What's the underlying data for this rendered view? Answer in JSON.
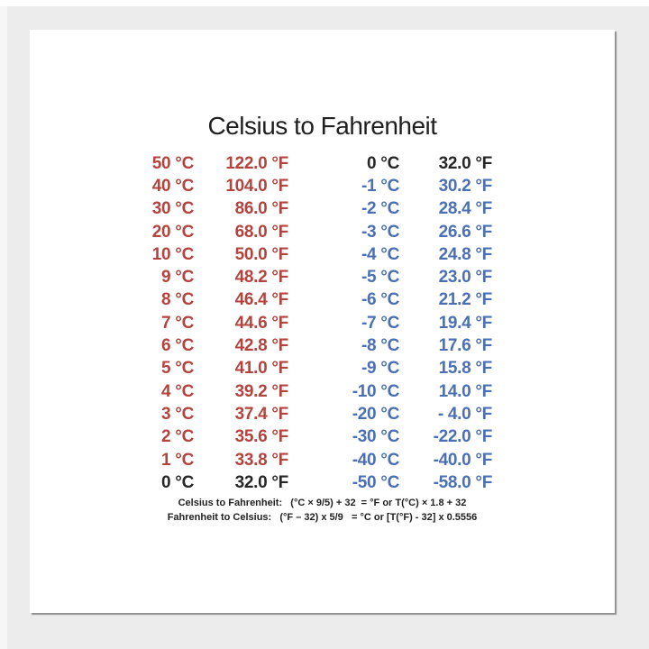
{
  "poster": {
    "title": "Celsius to Fahrenheit",
    "footer": {
      "line1": "Celsius to Fahrenheit:   (°C × 9/5) + 32  = °F or T(°C) × 1.8 + 32",
      "line2": "Fahrenheit to Celsius:   (°F – 32) x 5/9   = °C or [T(°F) - 32] x 0.5556"
    }
  },
  "colors": {
    "red": "#b4433e",
    "blue": "#4a6fb4",
    "black": "#262626",
    "background": "#ececec",
    "card": "#ffffff"
  },
  "chart_data": {
    "type": "table",
    "title": "Celsius to Fahrenheit",
    "layout": "two side-by-side Celsius→Fahrenheit pair columns, values right-aligned, positive rows red, zero rows black, negative rows blue",
    "left_rows": [
      {
        "celsius": "50 °C",
        "fahrenheit": "122.0 °F",
        "tone": "red"
      },
      {
        "celsius": "40 °C",
        "fahrenheit": "104.0 °F",
        "tone": "red"
      },
      {
        "celsius": "30 °C",
        "fahrenheit": "86.0 °F",
        "tone": "red"
      },
      {
        "celsius": "20 °C",
        "fahrenheit": "68.0 °F",
        "tone": "red"
      },
      {
        "celsius": "10 °C",
        "fahrenheit": "50.0 °F",
        "tone": "red"
      },
      {
        "celsius": "9 °C",
        "fahrenheit": "48.2 °F",
        "tone": "red"
      },
      {
        "celsius": "8 °C",
        "fahrenheit": "46.4 °F",
        "tone": "red"
      },
      {
        "celsius": "7 °C",
        "fahrenheit": "44.6 °F",
        "tone": "red"
      },
      {
        "celsius": "6 °C",
        "fahrenheit": "42.8 °F",
        "tone": "red"
      },
      {
        "celsius": "5 °C",
        "fahrenheit": "41.0 °F",
        "tone": "red"
      },
      {
        "celsius": "4 °C",
        "fahrenheit": "39.2 °F",
        "tone": "red"
      },
      {
        "celsius": "3 °C",
        "fahrenheit": "37.4 °F",
        "tone": "red"
      },
      {
        "celsius": "2 °C",
        "fahrenheit": "35.6 °F",
        "tone": "red"
      },
      {
        "celsius": "1 °C",
        "fahrenheit": "33.8 °F",
        "tone": "red"
      },
      {
        "celsius": "0 °C",
        "fahrenheit": "32.0 °F",
        "tone": "black"
      }
    ],
    "right_rows": [
      {
        "celsius": "0 °C",
        "fahrenheit": "32.0 °F",
        "tone": "black"
      },
      {
        "celsius": "-1 °C",
        "fahrenheit": "30.2 °F",
        "tone": "blue"
      },
      {
        "celsius": "-2 °C",
        "fahrenheit": "28.4 °F",
        "tone": "blue"
      },
      {
        "celsius": "-3 °C",
        "fahrenheit": "26.6 °F",
        "tone": "blue"
      },
      {
        "celsius": "-4 °C",
        "fahrenheit": "24.8 °F",
        "tone": "blue"
      },
      {
        "celsius": "-5 °C",
        "fahrenheit": "23.0 °F",
        "tone": "blue"
      },
      {
        "celsius": "-6 °C",
        "fahrenheit": "21.2 °F",
        "tone": "blue"
      },
      {
        "celsius": "-7 °C",
        "fahrenheit": "19.4 °F",
        "tone": "blue"
      },
      {
        "celsius": "-8 °C",
        "fahrenheit": "17.6 °F",
        "tone": "blue"
      },
      {
        "celsius": "-9 °C",
        "fahrenheit": "15.8 °F",
        "tone": "blue"
      },
      {
        "celsius": "-10 °C",
        "fahrenheit": "14.0 °F",
        "tone": "blue"
      },
      {
        "celsius": "-20 °C",
        "fahrenheit": "- 4.0 °F",
        "tone": "blue"
      },
      {
        "celsius": "-30 °C",
        "fahrenheit": "-22.0 °F",
        "tone": "blue"
      },
      {
        "celsius": "-40 °C",
        "fahrenheit": "-40.0 °F",
        "tone": "blue"
      },
      {
        "celsius": "-50 °C",
        "fahrenheit": "-58.0 °F",
        "tone": "blue"
      }
    ],
    "footnotes": [
      "Celsius to Fahrenheit:   (°C × 9/5) + 32  = °F or T(°C) × 1.8 + 32",
      "Fahrenheit to Celsius:   (°F – 32) x 5/9   = °C or [T(°F) - 32] x 0.5556"
    ]
  }
}
